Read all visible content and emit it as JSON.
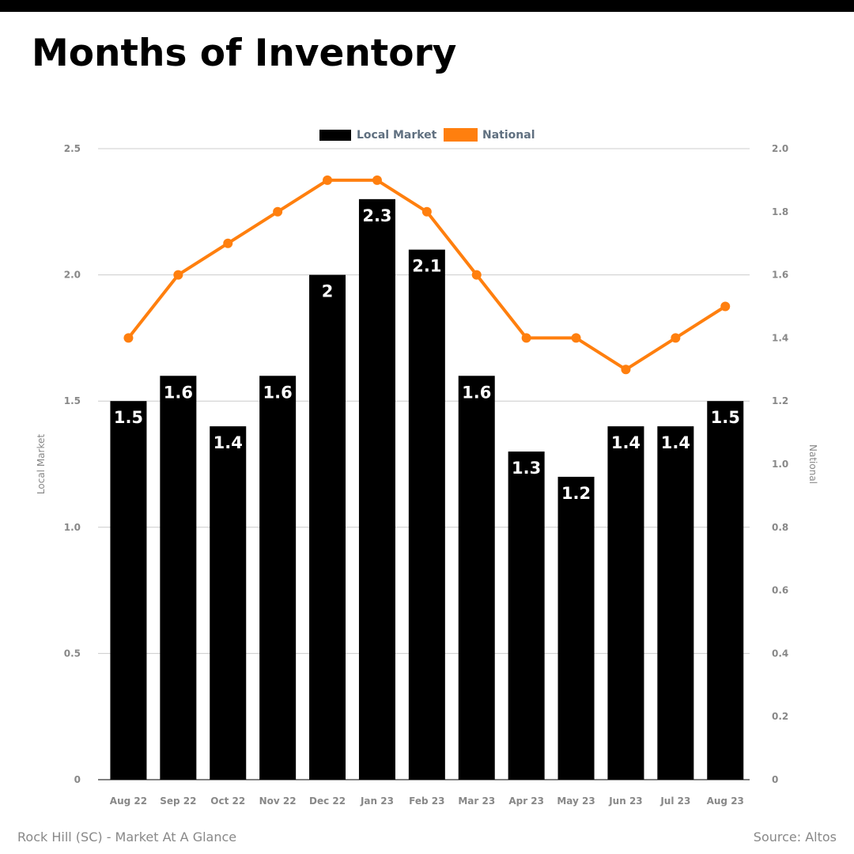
{
  "title": "Months of Inventory",
  "footer": {
    "left": "Rock Hill (SC) - Market At A Glance",
    "right": "Source: Altos"
  },
  "colors": {
    "local_bar": "#000000",
    "national_line": "#ff7f0e",
    "grid": "#cccccc",
    "tick_text": "#888888",
    "legend_text": "#607080"
  },
  "chart_data": {
    "type": "bar",
    "categories": [
      "Aug 22",
      "Sep 22",
      "Oct 22",
      "Nov 22",
      "Dec 22",
      "Jan 23",
      "Feb 23",
      "Mar 23",
      "Apr 23",
      "May 23",
      "Jun 23",
      "Jul 23",
      "Aug 23"
    ],
    "series": [
      {
        "name": "Local Market",
        "type": "bar",
        "axis": "left",
        "values": [
          1.5,
          1.6,
          1.4,
          1.6,
          2,
          2.3,
          2.1,
          1.6,
          1.3,
          1.2,
          1.4,
          1.4,
          1.5
        ],
        "labels": [
          "1.5",
          "1.6",
          "1.4",
          "1.6",
          "2",
          "2.3",
          "2.1",
          "1.6",
          "1.3",
          "1.2",
          "1.4",
          "1.4",
          "1.5"
        ]
      },
      {
        "name": "National",
        "type": "line",
        "axis": "right",
        "values": [
          1.4,
          1.6,
          1.7,
          1.8,
          1.9,
          1.9,
          1.8,
          1.6,
          1.4,
          1.4,
          1.3,
          1.4,
          1.5
        ]
      }
    ],
    "ylabel": "Local Market",
    "y2label": "National",
    "ylim": [
      0,
      2.5
    ],
    "y2lim": [
      0,
      2.0
    ],
    "yticks": [
      "0",
      "0.5",
      "1.0",
      "1.5",
      "2.0",
      "2.5"
    ],
    "y2ticks": [
      "0",
      "0.2",
      "0.4",
      "0.6",
      "0.8",
      "1.0",
      "1.2",
      "1.4",
      "1.6",
      "1.8",
      "2.0"
    ],
    "grid": true,
    "legend": "top-center"
  }
}
